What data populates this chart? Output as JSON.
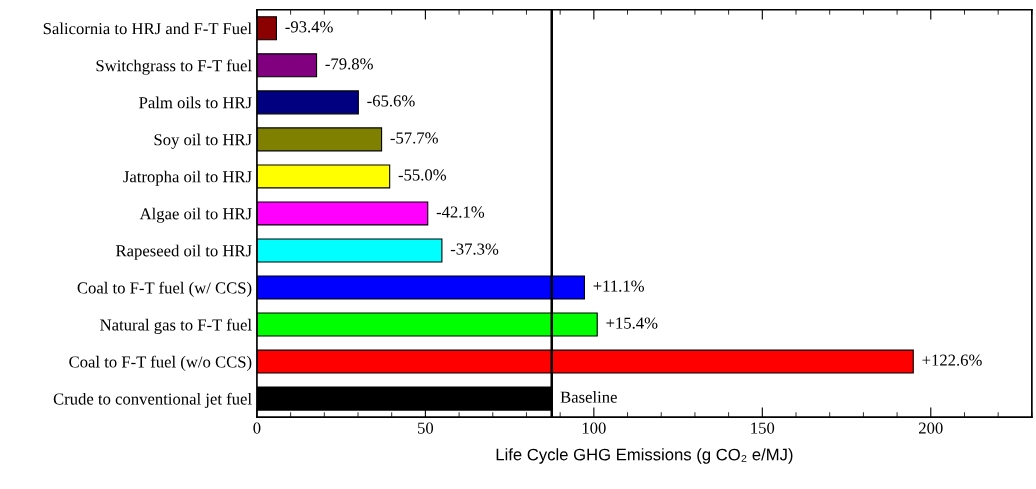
{
  "chart_data": {
    "type": "bar",
    "orientation": "horizontal",
    "xlabel": "Life Cycle GHG Emissions (g CO₂ e/MJ)",
    "categories": [
      "Salicornia to HRJ and F-T Fuel",
      "Switchgrass to F-T fuel",
      "Palm oils to HRJ",
      "Soy oil to HRJ",
      "Jatropha oil to HRJ",
      "Algae oil to HRJ",
      "Rapeseed oil to HRJ",
      "Coal to F-T fuel (w/ CCS)",
      "Natural gas to F-T fuel",
      "Coal to F-T fuel (w/o CCS)",
      "Crude to conventional jet fuel"
    ],
    "values": [
      5.8,
      17.7,
      30.1,
      37.0,
      39.4,
      50.7,
      54.9,
      97.2,
      101.0,
      194.8,
      87.5
    ],
    "colors": [
      "#8b0000",
      "#800080",
      "#000080",
      "#808000",
      "#ffff00",
      "#ff00ff",
      "#00ffff",
      "#0000ff",
      "#00ff00",
      "#ff0000",
      "#000000"
    ],
    "annotations": [
      {
        "text": "-93.4%",
        "x": 5.8,
        "y": "Salicornia to HRJ and F-T Fuel"
      },
      {
        "text": "-79.8%",
        "x": 17.7,
        "y": "Switchgrass to F-T fuel"
      },
      {
        "text": "-65.6%",
        "x": 30.1,
        "y": "Palm oils to HRJ"
      },
      {
        "text": "-57.7%",
        "x": 37.0,
        "y": "Soy oil to HRJ"
      },
      {
        "text": "-55.0%",
        "x": 39.4,
        "y": "Jatropha oil to HRJ"
      },
      {
        "text": "-42.1%",
        "x": 50.7,
        "y": "Algae oil to HRJ"
      },
      {
        "text": "-37.3%",
        "x": 54.9,
        "y": "Rapeseed oil to HRJ"
      },
      {
        "text": "+11.1%",
        "x": 97.2,
        "y": "Coal to F-T fuel (w/ CCS)"
      },
      {
        "text": "+15.4%",
        "x": 101.0,
        "y": "Natural gas to F-T fuel"
      },
      {
        "text": "+122.6%",
        "x": 194.8,
        "y": "Coal to F-T fuel (w/o CCS)"
      },
      {
        "text": "Baseline",
        "x": 87.5,
        "y": "Crude to conventional jet fuel"
      }
    ],
    "xlim": [
      0,
      230
    ],
    "xticks": [
      0,
      50,
      100,
      150,
      200
    ],
    "ref_lines": [
      {
        "axis": "x",
        "value": 87.5,
        "color": "#000000"
      }
    ],
    "grid": false
  }
}
